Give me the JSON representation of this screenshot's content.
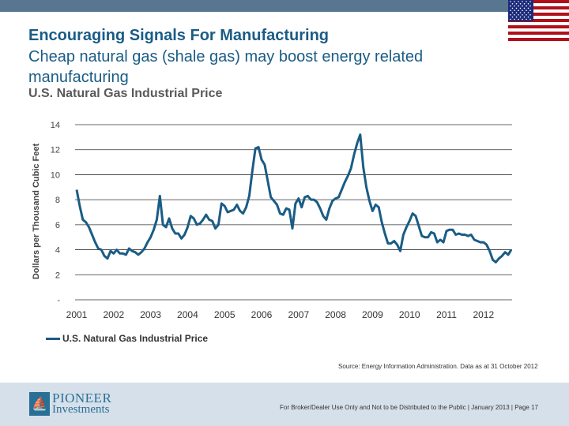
{
  "header": {
    "title": "Encouraging Signals For Manufacturing",
    "subtitle": "Cheap natural gas (shale gas) may boost energy related manufacturing",
    "flag_icon": "us-flag-icon"
  },
  "chart_data": {
    "type": "line",
    "title": "U.S. Natural Gas Industrial Price",
    "xlabel": "",
    "ylabel": "Dollars per Thousand Cubic Feet",
    "ylim": [
      0,
      14
    ],
    "yticks": [
      0,
      2,
      4,
      6,
      8,
      10,
      12,
      14
    ],
    "ytick_labels": [
      "-",
      "2",
      "4",
      "6",
      "8",
      "10",
      "12",
      "14"
    ],
    "xticks": [
      "2001",
      "2002",
      "2003",
      "2004",
      "2005",
      "2006",
      "2007",
      "2008",
      "2009",
      "2010",
      "2011",
      "2012"
    ],
    "x_start": "2001-01",
    "x_frequency": "monthly",
    "grid": true,
    "legend_position": "bottom-left",
    "series": [
      {
        "name": "U.S. Natural Gas Industrial Price",
        "color": "#1a5c85",
        "values": [
          8.8,
          7.5,
          6.4,
          6.2,
          5.8,
          5.2,
          4.6,
          4.1,
          4.0,
          3.5,
          3.3,
          3.9,
          3.7,
          4.0,
          3.7,
          3.7,
          3.6,
          4.1,
          3.9,
          3.8,
          3.6,
          3.8,
          4.1,
          4.6,
          5.0,
          5.6,
          6.4,
          8.3,
          6.0,
          5.8,
          6.5,
          5.7,
          5.3,
          5.3,
          4.9,
          5.2,
          5.8,
          6.7,
          6.5,
          6.0,
          6.1,
          6.4,
          6.8,
          6.4,
          6.3,
          5.7,
          6.0,
          7.7,
          7.5,
          7.0,
          7.1,
          7.2,
          7.6,
          7.1,
          6.9,
          7.4,
          8.3,
          10.3,
          12.1,
          12.2,
          11.2,
          10.8,
          9.5,
          8.2,
          7.9,
          7.6,
          6.9,
          6.8,
          7.3,
          7.2,
          5.7,
          7.7,
          8.1,
          7.4,
          8.2,
          8.3,
          8.0,
          8.0,
          7.8,
          7.3,
          6.7,
          6.4,
          7.3,
          7.9,
          8.1,
          8.2,
          8.8,
          9.4,
          9.9,
          10.5,
          11.6,
          12.5,
          13.2,
          10.6,
          9.0,
          7.9,
          7.1,
          7.6,
          7.4,
          6.2,
          5.3,
          4.5,
          4.5,
          4.7,
          4.4,
          3.9,
          5.2,
          5.8,
          6.3,
          6.9,
          6.7,
          5.9,
          5.1,
          5.0,
          5.0,
          5.4,
          5.3,
          4.6,
          4.8,
          4.6,
          5.5,
          5.6,
          5.6,
          5.2,
          5.3,
          5.2,
          5.2,
          5.1,
          5.2,
          4.8,
          4.7,
          4.6,
          4.6,
          4.4,
          3.9,
          3.2,
          3.0,
          3.3,
          3.5,
          3.8,
          3.6,
          4.0
        ]
      }
    ],
    "source": "Source: Energy Information Administration. Data as at 31 October 2012"
  },
  "footer": {
    "logo_line1": "PIONEER",
    "logo_line2": "Investments",
    "logo_icon": "ship-icon",
    "disclaimer": "For Broker/Dealer Use Only and Not to be Distributed to the Public  | January 2013  | Page 17"
  }
}
